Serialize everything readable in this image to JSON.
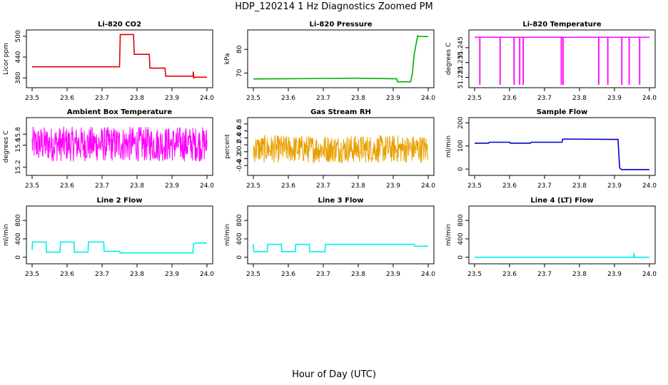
{
  "title": "HDP_120214  1 Hz Diagnostics Zoomed PM",
  "xlabel": "Hour of Day (UTC)",
  "chart_data": [
    {
      "type": "line",
      "title": "Li-820 CO2",
      "ylabel": "Licor ppm",
      "color": "#e00000",
      "xlim": [
        23.5,
        24.0
      ],
      "ylim": [
        360,
        510
      ],
      "xticks": [
        23.5,
        23.6,
        23.7,
        23.8,
        23.9,
        24.0
      ],
      "yticks": [
        380,
        440,
        500
      ],
      "series": [
        {
          "x": [
            23.5,
            23.75,
            23.752,
            23.79,
            23.792,
            23.835,
            23.837,
            23.88,
            23.882,
            23.96,
            23.961,
            23.962,
            23.965,
            24.0
          ],
          "y": [
            412,
            412,
            505,
            505,
            448,
            448,
            408,
            408,
            385,
            385,
            398,
            380,
            382,
            382
          ]
        }
      ]
    },
    {
      "type": "line",
      "title": "Li-820 Pressure",
      "ylabel": "kPa",
      "color": "#00b000",
      "xlim": [
        23.5,
        24.0
      ],
      "ylim": [
        65,
        87
      ],
      "xticks": [
        23.5,
        23.6,
        23.7,
        23.8,
        23.9,
        24.0
      ],
      "yticks": [
        70,
        80
      ],
      "series": [
        {
          "x": [
            23.5,
            23.6,
            23.7,
            23.8,
            23.9,
            23.91,
            23.912,
            23.95,
            23.955,
            23.96,
            23.97,
            23.972,
            24.0
          ],
          "y": [
            67.5,
            67.6,
            67.7,
            67.8,
            67.6,
            67.6,
            66.3,
            66.3,
            70,
            78,
            85.8,
            85.5,
            85.4
          ]
        }
      ]
    },
    {
      "type": "line",
      "title": "Li-820 Temperature",
      "ylabel": "degrees C",
      "color": "#ff00ff",
      "xlim": [
        23.5,
        24.0
      ],
      "ylim": [
        51.22,
        51.255
      ],
      "xticks": [
        23.5,
        23.6,
        23.7,
        23.8,
        23.9,
        24.0
      ],
      "yticks": [
        51.225,
        51.235,
        51.245
      ],
      "baseline": 51.252,
      "spikes": [
        23.515,
        23.573,
        23.613,
        23.629,
        23.639,
        23.748,
        23.753,
        23.855,
        23.881,
        23.921,
        23.942,
        23.972
      ]
    },
    {
      "type": "line",
      "title": "Ambient Box Temperature",
      "ylabel": "degrees C",
      "color": "#ff00ff",
      "xlim": [
        23.5,
        24.0
      ],
      "ylim": [
        15.1,
        16.05
      ],
      "xticks": [
        23.5,
        23.6,
        23.7,
        23.8,
        23.9,
        24.0
      ],
      "yticks": [
        15.2,
        15.6,
        15.8
      ],
      "noise": {
        "center": 15.62,
        "amplitude": 0.32
      }
    },
    {
      "type": "line",
      "title": "Gas Stream RH",
      "ylabel": "percent",
      "color": "#e8a000",
      "xlim": [
        23.5,
        24.0
      ],
      "ylim": [
        -0.6,
        0.9
      ],
      "xticks": [
        23.5,
        23.6,
        23.7,
        23.8,
        23.9,
        24.0
      ],
      "yticks": [
        -0.4,
        -0.2,
        0.0,
        0.2,
        0.4,
        0.6,
        0.8
      ],
      "noise": {
        "center": 0.08,
        "amplitude": 0.4
      }
    },
    {
      "type": "line",
      "title": "Sample Flow",
      "ylabel": "ml/min",
      "color": "#0000cc",
      "xlim": [
        23.5,
        24.0
      ],
      "ylim": [
        -15,
        210
      ],
      "xticks": [
        23.5,
        23.6,
        23.7,
        23.8,
        23.9,
        24.0
      ],
      "yticks": [
        0,
        100,
        200
      ],
      "series": [
        {
          "x": [
            23.5,
            23.54,
            23.542,
            23.6,
            23.602,
            23.66,
            23.662,
            23.75,
            23.752,
            23.91,
            23.915,
            23.92,
            24.0
          ],
          "y": [
            112,
            112,
            116,
            116,
            112,
            112,
            116,
            116,
            130,
            128,
            5,
            -2,
            -2
          ]
        }
      ]
    },
    {
      "type": "line",
      "title": "Line 2 Flow",
      "ylabel": "ml/min",
      "color": "#00eeee",
      "xlim": [
        23.5,
        24.0
      ],
      "ylim": [
        -80,
        1050
      ],
      "xticks": [
        23.5,
        23.6,
        23.7,
        23.8,
        23.9,
        24.0
      ],
      "yticks": [
        0,
        400,
        800
      ],
      "series": [
        {
          "x": [
            23.5,
            23.501,
            23.54,
            23.541,
            23.58,
            23.581,
            23.62,
            23.621,
            23.66,
            23.661,
            23.705,
            23.706,
            23.75,
            23.751,
            23.96,
            23.961,
            23.968,
            24.0
          ],
          "y": [
            160,
            330,
            330,
            110,
            110,
            330,
            330,
            110,
            110,
            330,
            330,
            130,
            130,
            95,
            95,
            280,
            310,
            310
          ]
        }
      ]
    },
    {
      "type": "line",
      "title": "Line 3 Flow",
      "ylabel": "ml/min",
      "color": "#00eeee",
      "xlim": [
        23.5,
        24.0
      ],
      "ylim": [
        -80,
        1050
      ],
      "xticks": [
        23.5,
        23.6,
        23.7,
        23.8,
        23.9,
        24.0
      ],
      "yticks": [
        0,
        400,
        800
      ],
      "series": [
        {
          "x": [
            23.5,
            23.501,
            23.502,
            23.54,
            23.541,
            23.58,
            23.581,
            23.62,
            23.621,
            23.66,
            23.661,
            23.705,
            23.706,
            23.96,
            23.961,
            24.0
          ],
          "y": [
            280,
            140,
            120,
            120,
            280,
            280,
            120,
            120,
            280,
            280,
            120,
            120,
            280,
            280,
            240,
            240
          ]
        }
      ]
    },
    {
      "type": "line",
      "title": "Line 4 (LT) Flow",
      "ylabel": "ml/min",
      "color": "#00eeee",
      "xlim": [
        23.5,
        24.0
      ],
      "ylim": [
        -80,
        1050
      ],
      "xticks": [
        23.5,
        23.6,
        23.7,
        23.8,
        23.9,
        24.0
      ],
      "yticks": [
        0,
        400,
        800
      ],
      "series": [
        {
          "x": [
            23.5,
            23.955,
            23.956,
            23.957,
            23.958,
            24.0
          ],
          "y": [
            0,
            0,
            90,
            5,
            0,
            0
          ]
        }
      ]
    }
  ]
}
